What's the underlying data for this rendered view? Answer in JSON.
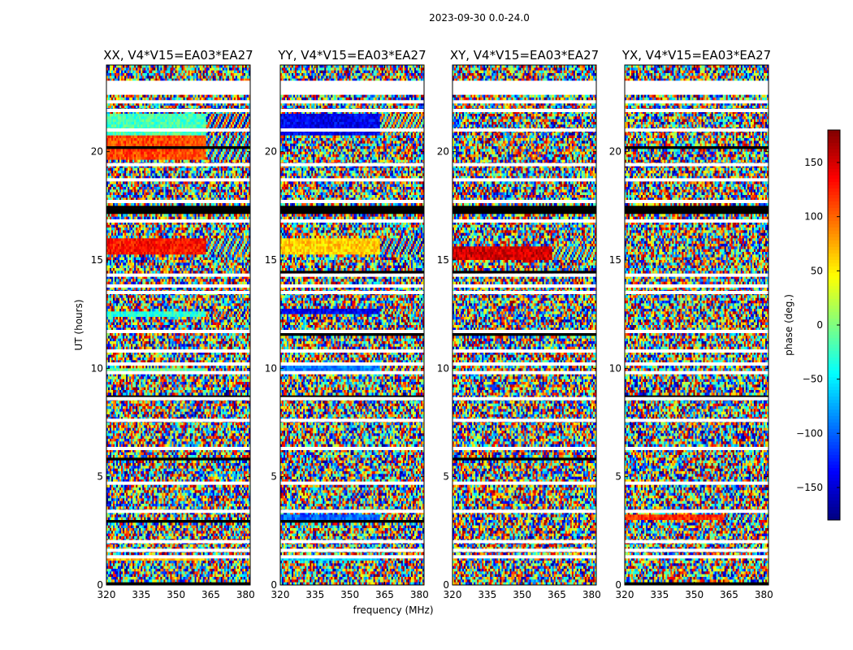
{
  "chart_data": {
    "type": "heatmap",
    "suptitle": "2023-09-30 0.0-24.0",
    "xlabel": "frequency (MHz)",
    "ylabel": "UT (hours)",
    "xlim": [
      320,
      382
    ],
    "ylim": [
      0,
      24
    ],
    "xticks": [
      "320",
      "335",
      "350",
      "365",
      "380"
    ],
    "xtick_values": [
      320,
      335,
      350,
      365,
      380
    ],
    "yticks": [
      "0",
      "5",
      "10",
      "15",
      "20"
    ],
    "ytick_values": [
      0,
      5,
      10,
      15,
      20
    ],
    "panels": [
      {
        "title": "XX, V4*V15=EA03*EA27",
        "pol": "XX"
      },
      {
        "title": "YY, V4*V15=EA03*EA27",
        "pol": "YY"
      },
      {
        "title": "XY, V4*V15=EA03*EA27",
        "pol": "XY"
      },
      {
        "title": "YX, V4*V15=EA03*EA27",
        "pol": "YX"
      }
    ],
    "colorbar": {
      "label": "phase (deg.)",
      "range": [
        -180,
        180
      ],
      "ticks": [
        "150",
        "100",
        "50",
        "0",
        "−50",
        "−100",
        "−150"
      ],
      "tick_values": [
        150,
        100,
        50,
        0,
        -50,
        -100,
        -150
      ],
      "colormap": "jet"
    },
    "flagged_color": "#ffffff",
    "dense_color": "#000000",
    "white_gaps_ut": [
      1.3,
      1.6,
      2.0,
      3.4,
      4.7,
      6.3,
      7.6,
      8.6,
      9.8,
      10.2,
      10.8,
      11.7,
      13.5,
      13.8,
      14.3,
      16.8,
      17.7,
      18.7,
      19.4,
      21.0,
      21.9,
      22.3,
      23.2
    ],
    "flagged_block_ut": [
      [
        22.6,
        23.3
      ]
    ],
    "dense_block_ut": [
      [
        17.1,
        17.5
      ]
    ],
    "coherent_bands": {
      "XX": [
        {
          "ut": [
            15.2,
            16.0
          ],
          "phase": 130
        },
        {
          "ut": [
            19.6,
            20.7
          ],
          "phase": 110
        },
        {
          "ut": [
            20.7,
            21.8
          ],
          "phase": -20
        },
        {
          "ut": [
            1.1,
            1.3
          ],
          "phase": 70
        },
        {
          "ut": [
            9.9,
            10.0
          ],
          "phase": -10
        },
        {
          "ut": [
            12.4,
            12.6
          ],
          "phase": -30
        }
      ],
      "YY": [
        {
          "ut": [
            15.2,
            16.0
          ],
          "phase": 60
        },
        {
          "ut": [
            20.8,
            21.8
          ],
          "phase": -140
        },
        {
          "ut": [
            1.1,
            1.3
          ],
          "phase": -60
        },
        {
          "ut": [
            3.0,
            3.2
          ],
          "phase": -100
        },
        {
          "ut": [
            9.9,
            10.1
          ],
          "phase": -90
        },
        {
          "ut": [
            12.5,
            12.7
          ],
          "phase": -140
        }
      ],
      "XY": [
        {
          "ut": [
            15.0,
            15.6
          ],
          "phase": 150
        }
      ],
      "YX": [
        {
          "ut": [
            3.0,
            3.3
          ],
          "phase": 120
        }
      ]
    }
  }
}
